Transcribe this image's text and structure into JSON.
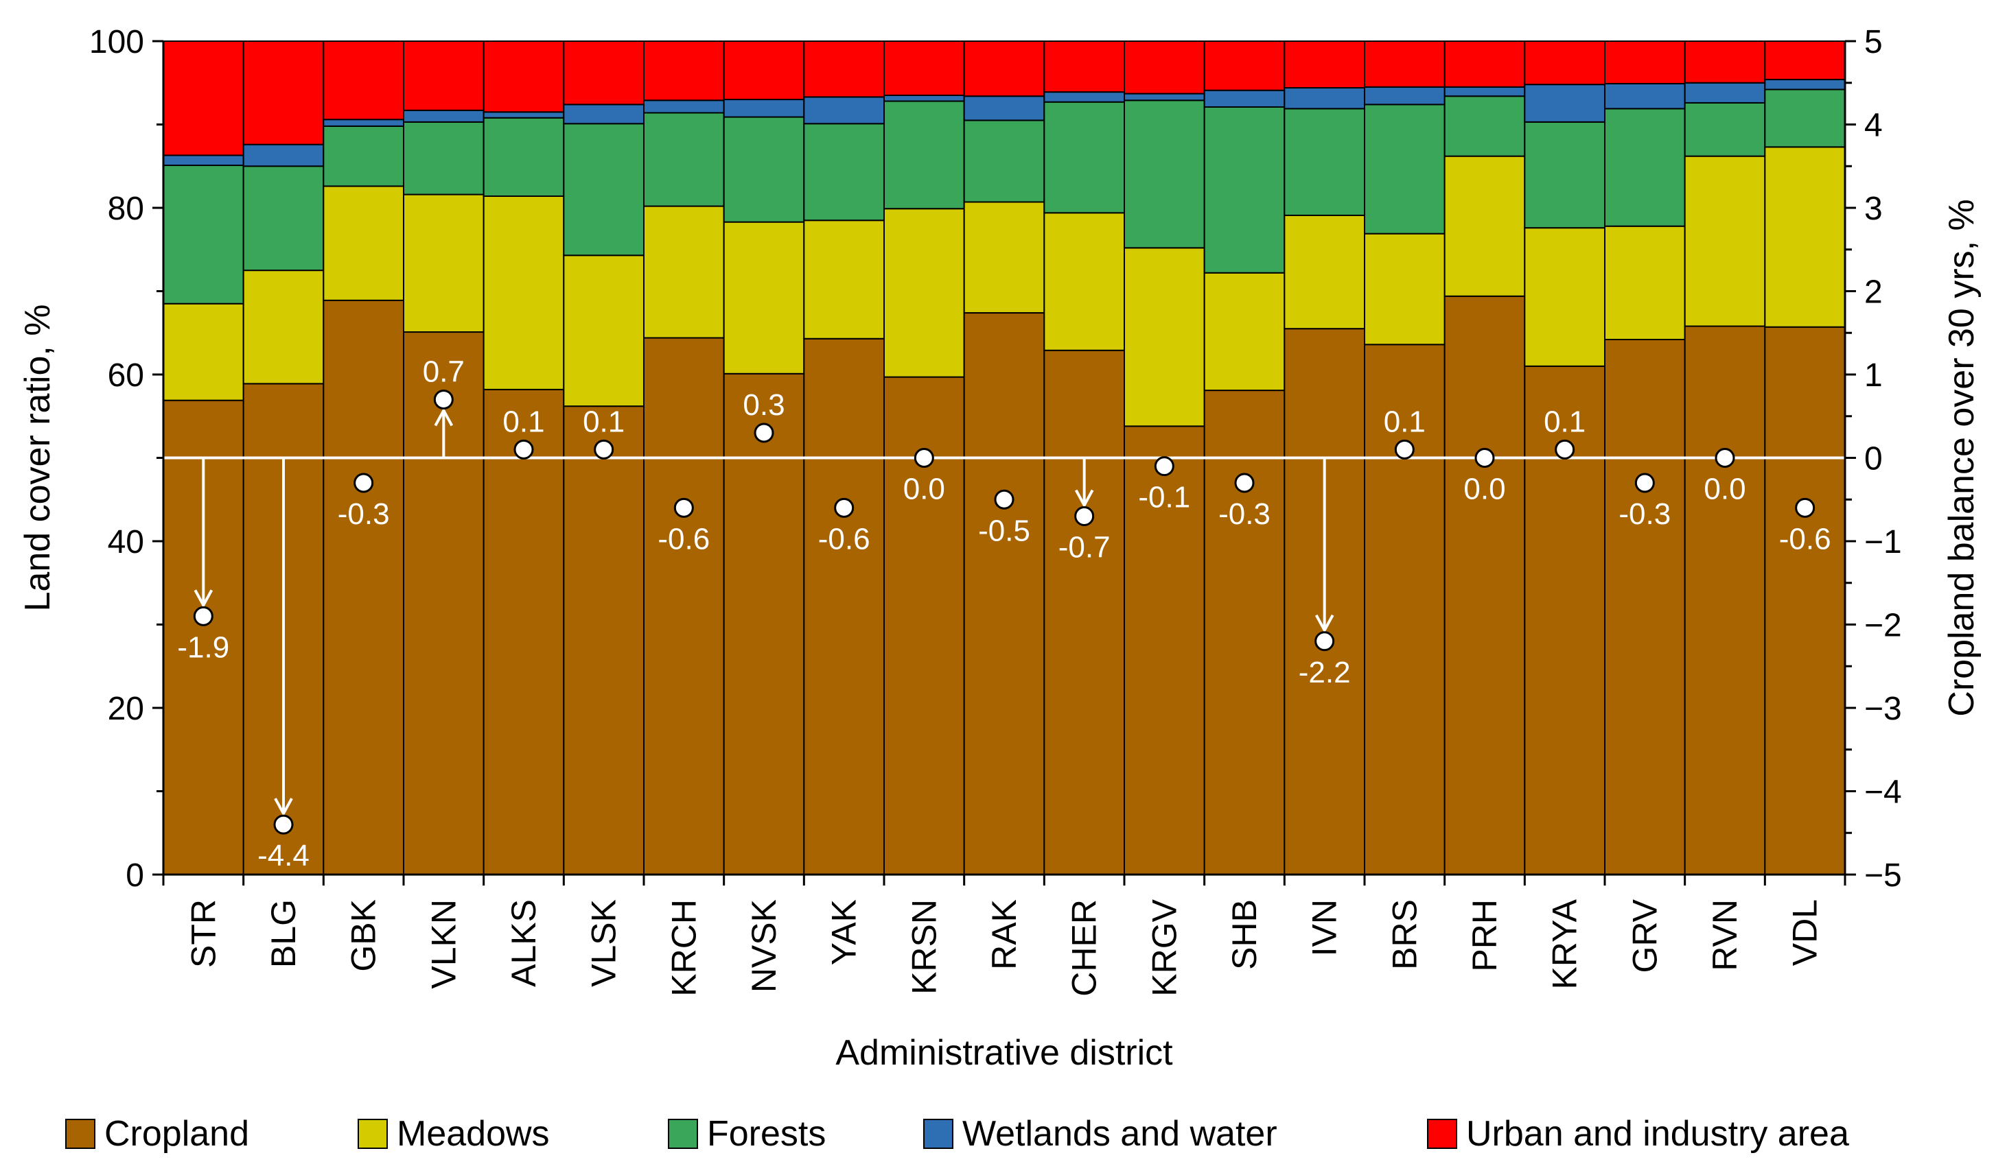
{
  "chart_data": {
    "type": "bar",
    "stacked": true,
    "xlabel": "Administrative district",
    "ylabel": "Land cover ratio, %",
    "ylabel_right": "Cropland balance over 30 yrs, %",
    "ylim": [
      0,
      100
    ],
    "ylim_right": [
      -5,
      5
    ],
    "yticks": [
      "0",
      "20",
      "40",
      "60",
      "80",
      "100"
    ],
    "yticks_right": [
      "−5",
      "−4",
      "−3",
      "−2",
      "−1",
      "0",
      "1",
      "2",
      "3",
      "4",
      "5"
    ],
    "categories": [
      "STR",
      "BLG",
      "GBK",
      "VLKN",
      "ALKS",
      "VLSK",
      "KRCH",
      "NVSK",
      "YAK",
      "KRSN",
      "RAK",
      "CHER",
      "KRGV",
      "SHB",
      "IVN",
      "BRS",
      "PRH",
      "KRYA",
      "GRV",
      "RVN",
      "VDL"
    ],
    "series": [
      {
        "name": "Cropland",
        "color": "#a86400",
        "values": [
          56.9,
          58.9,
          68.9,
          65.1,
          58.2,
          56.2,
          64.4,
          60.1,
          64.3,
          59.7,
          67.4,
          62.9,
          53.8,
          58.1,
          65.5,
          63.6,
          69.4,
          61.0,
          64.2,
          65.8,
          65.7
        ]
      },
      {
        "name": "Meadows",
        "color": "#d4cc00",
        "values": [
          11.6,
          13.6,
          13.7,
          16.5,
          23.2,
          18.1,
          15.8,
          18.2,
          14.2,
          20.2,
          13.3,
          16.5,
          21.4,
          14.1,
          13.6,
          13.3,
          16.8,
          16.6,
          13.6,
          20.4,
          21.6
        ]
      },
      {
        "name": "Forests",
        "color": "#3aa65a",
        "values": [
          16.6,
          12.5,
          7.2,
          8.7,
          9.4,
          15.8,
          11.2,
          12.6,
          11.6,
          12.9,
          9.8,
          13.3,
          17.7,
          19.9,
          12.8,
          15.5,
          7.2,
          12.7,
          14.1,
          6.4,
          6.9
        ]
      },
      {
        "name": "Wetlands and water",
        "color": "#2e6fb4",
        "values": [
          1.2,
          2.6,
          0.8,
          1.4,
          0.7,
          2.3,
          1.5,
          2.1,
          3.2,
          0.7,
          2.9,
          1.2,
          0.8,
          2.0,
          2.5,
          2.1,
          1.1,
          4.5,
          3.0,
          2.4,
          1.2
        ]
      },
      {
        "name": "Urban and industry area",
        "color": "#fe0000",
        "values": [
          13.7,
          12.4,
          9.4,
          8.3,
          8.5,
          7.6,
          7.1,
          7.0,
          6.7,
          6.5,
          6.6,
          6.1,
          6.3,
          5.9,
          5.6,
          5.5,
          5.5,
          5.2,
          5.1,
          5.0,
          4.6
        ]
      }
    ],
    "balance": {
      "name": "Cropland balance over 30 yrs",
      "values": [
        -1.9,
        -4.4,
        -0.3,
        0.7,
        0.1,
        0.1,
        -0.6,
        0.3,
        -0.6,
        0.0,
        -0.5,
        -0.7,
        -0.1,
        -0.3,
        -2.2,
        0.1,
        0.0,
        0.1,
        -0.3,
        0.0,
        -0.6
      ],
      "labels": [
        "-1.9",
        "-4.4",
        "-0.3",
        "0.7",
        "0.1",
        "0.1",
        "-0.6",
        "0.3",
        "-0.6",
        "0.0",
        "-0.5",
        "-0.7",
        "-0.1",
        "-0.3",
        "-2.2",
        "0.1",
        "0.0",
        "0.1",
        "-0.3",
        "0.0",
        "-0.6"
      ],
      "arrows": [
        true,
        true,
        false,
        true,
        false,
        false,
        false,
        false,
        false,
        false,
        false,
        true,
        false,
        false,
        true,
        false,
        false,
        false,
        false,
        false,
        false
      ]
    },
    "legend_position": "bottom",
    "grid": false
  }
}
